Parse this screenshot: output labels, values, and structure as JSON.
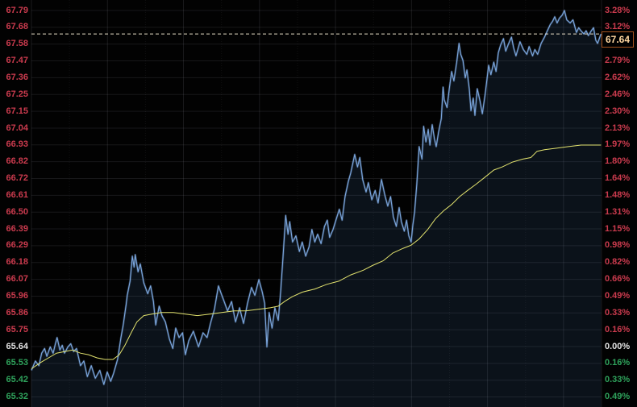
{
  "chart_data": {
    "type": "line",
    "title": "",
    "description": "Intraday stock price minute chart with average price line, price axis on left, percent-change axis on right",
    "base_price": 65.64,
    "session_high": 67.79,
    "session_low": 65.32,
    "ylim": [
      65.32,
      67.79
    ],
    "rows": 24,
    "grid": "on",
    "legend_position": "none",
    "xlabel": "",
    "ylabel": "",
    "left_axis": {
      "values": [
        "67.79",
        "67.68",
        "67.58",
        "67.47",
        "67.36",
        "67.25",
        "67.15",
        "67.04",
        "66.93",
        "66.82",
        "66.72",
        "66.61",
        "66.50",
        "66.39",
        "66.29",
        "66.18",
        "66.07",
        "65.96",
        "65.86",
        "65.75",
        "65.64",
        "65.53",
        "65.42",
        "65.32"
      ],
      "tones": [
        "up",
        "up",
        "up",
        "up",
        "up",
        "up",
        "up",
        "up",
        "up",
        "up",
        "up",
        "up",
        "up",
        "up",
        "up",
        "up",
        "up",
        "up",
        "up",
        "up",
        "flat",
        "down",
        "down",
        "down"
      ],
      "rows": [
        0,
        1,
        2,
        3,
        4,
        5,
        6,
        7,
        8,
        9,
        10,
        11,
        12,
        13,
        14,
        15,
        16,
        17,
        18,
        19,
        20,
        21,
        22,
        23
      ]
    },
    "right_axis": {
      "values": [
        "3.28%",
        "3.12%",
        "2.79%",
        "2.62%",
        "2.46%",
        "2.30%",
        "2.13%",
        "1.97%",
        "1.80%",
        "1.64%",
        "1.48%",
        "1.31%",
        "1.15%",
        "0.98%",
        "0.82%",
        "0.66%",
        "0.49%",
        "0.33%",
        "0.16%",
        "0.00%",
        "0.16%",
        "0.33%",
        "0.49%"
      ],
      "tones": [
        "up",
        "up",
        "up",
        "up",
        "up",
        "up",
        "up",
        "up",
        "up",
        "up",
        "up",
        "up",
        "up",
        "up",
        "up",
        "up",
        "up",
        "up",
        "up",
        "flat",
        "down",
        "down",
        "down"
      ],
      "rows": [
        0,
        1,
        3,
        4,
        5,
        6,
        7,
        8,
        9,
        10,
        11,
        12,
        13,
        14,
        15,
        16,
        17,
        18,
        19,
        20,
        21,
        22,
        23
      ]
    },
    "marker": {
      "text": "67.64",
      "price": 67.64
    },
    "series": [
      {
        "name": "price",
        "color": "#7fabe4",
        "points": [
          [
            0,
            65.49
          ],
          [
            0.007,
            65.55
          ],
          [
            0.013,
            65.52
          ],
          [
            0.018,
            65.6
          ],
          [
            0.023,
            65.63
          ],
          [
            0.027,
            65.58
          ],
          [
            0.033,
            65.64
          ],
          [
            0.038,
            65.6
          ],
          [
            0.042,
            65.66
          ],
          [
            0.045,
            65.7
          ],
          [
            0.05,
            65.62
          ],
          [
            0.054,
            65.65
          ],
          [
            0.058,
            65.6
          ],
          [
            0.064,
            65.64
          ],
          [
            0.069,
            65.66
          ],
          [
            0.074,
            65.61
          ],
          [
            0.079,
            65.63
          ],
          [
            0.086,
            65.52
          ],
          [
            0.092,
            65.55
          ],
          [
            0.098,
            65.45
          ],
          [
            0.105,
            65.52
          ],
          [
            0.112,
            65.44
          ],
          [
            0.12,
            65.49
          ],
          [
            0.127,
            65.4
          ],
          [
            0.133,
            65.48
          ],
          [
            0.139,
            65.42
          ],
          [
            0.144,
            65.47
          ],
          [
            0.151,
            65.56
          ],
          [
            0.157,
            65.7
          ],
          [
            0.161,
            65.78
          ],
          [
            0.166,
            65.91
          ],
          [
            0.168,
            65.97
          ],
          [
            0.173,
            66.06
          ],
          [
            0.177,
            66.22
          ],
          [
            0.18,
            66.15
          ],
          [
            0.182,
            66.23
          ],
          [
            0.187,
            66.12
          ],
          [
            0.191,
            66.17
          ],
          [
            0.197,
            66.05
          ],
          [
            0.204,
            65.98
          ],
          [
            0.209,
            66.03
          ],
          [
            0.214,
            65.93
          ],
          [
            0.218,
            65.78
          ],
          [
            0.224,
            65.9
          ],
          [
            0.229,
            65.84
          ],
          [
            0.235,
            65.8
          ],
          [
            0.242,
            65.69
          ],
          [
            0.248,
            65.63
          ],
          [
            0.253,
            65.76
          ],
          [
            0.259,
            65.7
          ],
          [
            0.265,
            65.73
          ],
          [
            0.27,
            65.59
          ],
          [
            0.276,
            65.68
          ],
          [
            0.284,
            65.74
          ],
          [
            0.293,
            65.64
          ],
          [
            0.301,
            65.73
          ],
          [
            0.308,
            65.7
          ],
          [
            0.314,
            65.79
          ],
          [
            0.321,
            65.88
          ],
          [
            0.328,
            66.03
          ],
          [
            0.333,
            65.98
          ],
          [
            0.338,
            65.93
          ],
          [
            0.344,
            65.87
          ],
          [
            0.351,
            65.93
          ],
          [
            0.358,
            65.8
          ],
          [
            0.365,
            65.89
          ],
          [
            0.372,
            65.79
          ],
          [
            0.379,
            65.92
          ],
          [
            0.386,
            66.02
          ],
          [
            0.392,
            65.97
          ],
          [
            0.399,
            66.07
          ],
          [
            0.405,
            65.99
          ],
          [
            0.409,
            65.92
          ],
          [
            0.413,
            65.64
          ],
          [
            0.417,
            65.86
          ],
          [
            0.422,
            65.76
          ],
          [
            0.427,
            65.89
          ],
          [
            0.433,
            65.81
          ],
          [
            0.437,
            65.99
          ],
          [
            0.441,
            66.2
          ],
          [
            0.446,
            66.48
          ],
          [
            0.45,
            66.36
          ],
          [
            0.453,
            66.44
          ],
          [
            0.458,
            66.31
          ],
          [
            0.464,
            66.35
          ],
          [
            0.47,
            66.25
          ],
          [
            0.475,
            66.31
          ],
          [
            0.481,
            66.22
          ],
          [
            0.487,
            66.28
          ],
          [
            0.492,
            66.39
          ],
          [
            0.497,
            66.31
          ],
          [
            0.502,
            66.36
          ],
          [
            0.508,
            66.3
          ],
          [
            0.514,
            66.41
          ],
          [
            0.519,
            66.45
          ],
          [
            0.523,
            66.34
          ],
          [
            0.529,
            66.39
          ],
          [
            0.535,
            66.46
          ],
          [
            0.54,
            66.52
          ],
          [
            0.545,
            66.45
          ],
          [
            0.55,
            66.6
          ],
          [
            0.556,
            66.7
          ],
          [
            0.56,
            66.75
          ],
          [
            0.567,
            66.87
          ],
          [
            0.572,
            66.79
          ],
          [
            0.576,
            66.85
          ],
          [
            0.581,
            66.71
          ],
          [
            0.587,
            66.63
          ],
          [
            0.591,
            66.69
          ],
          [
            0.597,
            66.58
          ],
          [
            0.603,
            66.64
          ],
          [
            0.608,
            66.56
          ],
          [
            0.614,
            66.71
          ],
          [
            0.62,
            66.61
          ],
          [
            0.625,
            66.54
          ],
          [
            0.63,
            66.6
          ],
          [
            0.635,
            66.47
          ],
          [
            0.64,
            66.41
          ],
          [
            0.645,
            66.53
          ],
          [
            0.649,
            66.44
          ],
          [
            0.654,
            66.38
          ],
          [
            0.658,
            66.45
          ],
          [
            0.662,
            66.35
          ],
          [
            0.666,
            66.31
          ],
          [
            0.669,
            66.42
          ],
          [
            0.672,
            66.5
          ],
          [
            0.676,
            66.68
          ],
          [
            0.68,
            66.92
          ],
          [
            0.685,
            66.84
          ],
          [
            0.688,
            67.05
          ],
          [
            0.692,
            66.95
          ],
          [
            0.696,
            67.03
          ],
          [
            0.699,
            66.93
          ],
          [
            0.703,
            67.06
          ],
          [
            0.707,
            66.97
          ],
          [
            0.71,
            66.92
          ],
          [
            0.714,
            67.01
          ],
          [
            0.719,
            67.1
          ],
          [
            0.722,
            67.3
          ],
          [
            0.724,
            67.22
          ],
          [
            0.729,
            67.17
          ],
          [
            0.733,
            67.29
          ],
          [
            0.737,
            67.4
          ],
          [
            0.741,
            67.34
          ],
          [
            0.746,
            67.46
          ],
          [
            0.75,
            67.58
          ],
          [
            0.753,
            67.51
          ],
          [
            0.757,
            67.47
          ],
          [
            0.761,
            67.36
          ],
          [
            0.764,
            67.41
          ],
          [
            0.768,
            67.29
          ],
          [
            0.771,
            67.15
          ],
          [
            0.775,
            67.23
          ],
          [
            0.778,
            67.12
          ],
          [
            0.782,
            67.29
          ],
          [
            0.787,
            67.21
          ],
          [
            0.791,
            67.13
          ],
          [
            0.796,
            67.26
          ],
          [
            0.802,
            67.44
          ],
          [
            0.806,
            67.38
          ],
          [
            0.811,
            67.46
          ],
          [
            0.815,
            67.4
          ],
          [
            0.819,
            67.52
          ],
          [
            0.823,
            67.57
          ],
          [
            0.828,
            67.61
          ],
          [
            0.832,
            67.53
          ],
          [
            0.836,
            67.57
          ],
          [
            0.842,
            67.62
          ],
          [
            0.846,
            67.55
          ],
          [
            0.85,
            67.5
          ],
          [
            0.857,
            67.59
          ],
          [
            0.863,
            67.54
          ],
          [
            0.869,
            67.51
          ],
          [
            0.873,
            67.56
          ],
          [
            0.879,
            67.5
          ],
          [
            0.883,
            67.54
          ],
          [
            0.888,
            67.51
          ],
          [
            0.894,
            67.58
          ],
          [
            0.9,
            67.62
          ],
          [
            0.905,
            67.66
          ],
          [
            0.91,
            67.7
          ],
          [
            0.914,
            67.72
          ],
          [
            0.918,
            67.75
          ],
          [
            0.922,
            67.71
          ],
          [
            0.926,
            67.74
          ],
          [
            0.931,
            67.76
          ],
          [
            0.935,
            67.79
          ],
          [
            0.939,
            67.73
          ],
          [
            0.945,
            67.71
          ],
          [
            0.95,
            67.73
          ],
          [
            0.956,
            67.65
          ],
          [
            0.96,
            67.68
          ],
          [
            0.964,
            67.66
          ],
          [
            0.969,
            67.64
          ],
          [
            0.973,
            67.66
          ],
          [
            0.977,
            67.63
          ],
          [
            0.982,
            67.66
          ],
          [
            0.986,
            67.68
          ],
          [
            0.99,
            67.6
          ],
          [
            0.993,
            67.58
          ],
          [
            0.999,
            67.64
          ]
        ]
      },
      {
        "name": "average-price",
        "color": "#e2e26e",
        "points": [
          [
            0,
            65.5
          ],
          [
            0.016,
            65.54
          ],
          [
            0.03,
            65.57
          ],
          [
            0.044,
            65.6
          ],
          [
            0.058,
            65.61
          ],
          [
            0.072,
            65.62
          ],
          [
            0.086,
            65.6
          ],
          [
            0.1,
            65.59
          ],
          [
            0.115,
            65.57
          ],
          [
            0.129,
            65.56
          ],
          [
            0.143,
            65.56
          ],
          [
            0.154,
            65.59
          ],
          [
            0.164,
            65.65
          ],
          [
            0.175,
            65.73
          ],
          [
            0.185,
            65.8
          ],
          [
            0.197,
            65.84
          ],
          [
            0.211,
            65.85
          ],
          [
            0.228,
            65.86
          ],
          [
            0.249,
            65.86
          ],
          [
            0.27,
            65.85
          ],
          [
            0.291,
            65.84
          ],
          [
            0.313,
            65.85
          ],
          [
            0.334,
            65.86
          ],
          [
            0.355,
            65.87
          ],
          [
            0.376,
            65.87
          ],
          [
            0.398,
            65.88
          ],
          [
            0.419,
            65.89
          ],
          [
            0.433,
            65.9
          ],
          [
            0.444,
            65.93
          ],
          [
            0.457,
            65.96
          ],
          [
            0.475,
            65.99
          ],
          [
            0.497,
            66.01
          ],
          [
            0.518,
            66.04
          ],
          [
            0.539,
            66.06
          ],
          [
            0.56,
            66.1
          ],
          [
            0.582,
            66.13
          ],
          [
            0.598,
            66.16
          ],
          [
            0.617,
            66.19
          ],
          [
            0.634,
            66.24
          ],
          [
            0.652,
            66.27
          ],
          [
            0.666,
            66.29
          ],
          [
            0.68,
            66.33
          ],
          [
            0.695,
            66.39
          ],
          [
            0.709,
            66.46
          ],
          [
            0.723,
            66.51
          ],
          [
            0.737,
            66.55
          ],
          [
            0.751,
            66.6
          ],
          [
            0.765,
            66.64
          ],
          [
            0.78,
            66.68
          ],
          [
            0.794,
            66.72
          ],
          [
            0.811,
            66.77
          ],
          [
            0.826,
            66.79
          ],
          [
            0.843,
            66.82
          ],
          [
            0.862,
            66.84
          ],
          [
            0.876,
            66.85
          ],
          [
            0.887,
            66.89
          ],
          [
            0.9,
            66.9
          ],
          [
            0.921,
            66.91
          ],
          [
            0.942,
            66.92
          ],
          [
            0.964,
            66.93
          ],
          [
            0.985,
            66.93
          ],
          [
            0.999,
            66.93
          ]
        ]
      }
    ],
    "colors": {
      "up": "#cb3b4e",
      "down": "#2fa35c",
      "flat": "#e3e3e3",
      "price_line": "#7fabe4",
      "price_fill": "rgba(80,130,190,0.13)",
      "avg_line": "#e2e26e",
      "marker_border": "#a5521d",
      "marker_text": "#ffd7a0",
      "marker_dash_line": "#e9dfc8",
      "grid_h": "rgba(150,150,160,0.15)",
      "grid_v_major": "rgba(150,150,160,0.17)",
      "grid_v_minor": "rgba(150,150,160,0.10)",
      "background": "#020202"
    }
  }
}
